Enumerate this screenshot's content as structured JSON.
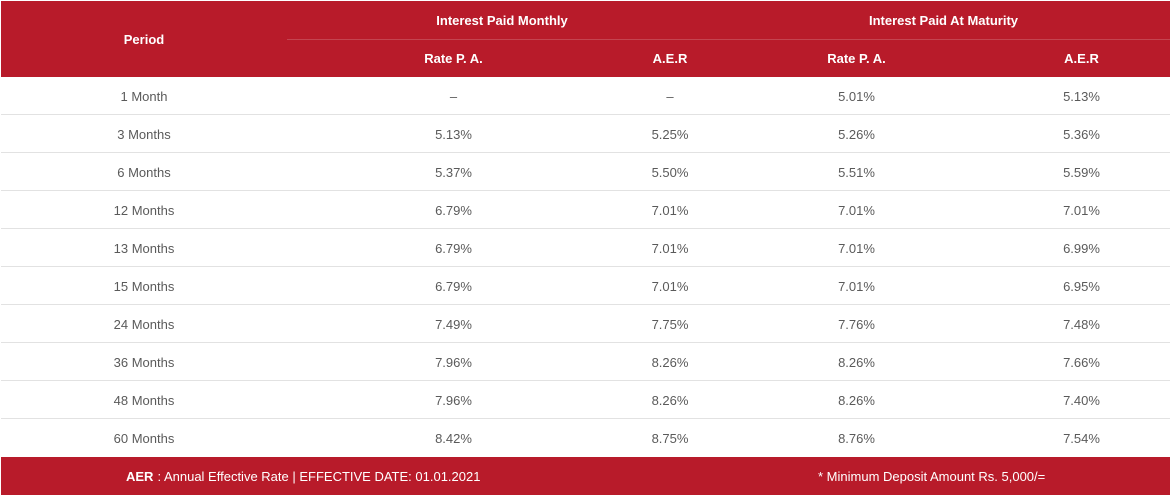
{
  "header": {
    "period": "Period",
    "monthly_group": "Interest Paid Monthly",
    "maturity_group": "Interest Paid At Maturity",
    "monthly_rate": "Rate P. A.",
    "monthly_aer": "A.E.R",
    "maturity_rate": "Rate P. A.",
    "maturity_aer": "A.E.R"
  },
  "rows": [
    {
      "period": "1 Month",
      "monthly_rate": "–",
      "monthly_aer": "–",
      "maturity_rate": "5.01%",
      "maturity_aer": "5.13%"
    },
    {
      "period": "3 Months",
      "monthly_rate": "5.13%",
      "monthly_aer": "5.25%",
      "maturity_rate": "5.26%",
      "maturity_aer": "5.36%"
    },
    {
      "period": "6 Months",
      "monthly_rate": "5.37%",
      "monthly_aer": "5.50%",
      "maturity_rate": "5.51%",
      "maturity_aer": "5.59%"
    },
    {
      "period": "12 Months",
      "monthly_rate": "6.79%",
      "monthly_aer": "7.01%",
      "maturity_rate": "7.01%",
      "maturity_aer": "7.01%"
    },
    {
      "period": "13 Months",
      "monthly_rate": "6.79%",
      "monthly_aer": "7.01%",
      "maturity_rate": "7.01%",
      "maturity_aer": "6.99%"
    },
    {
      "period": "15 Months",
      "monthly_rate": "6.79%",
      "monthly_aer": "7.01%",
      "maturity_rate": "7.01%",
      "maturity_aer": "6.95%"
    },
    {
      "period": "24 Months",
      "monthly_rate": "7.49%",
      "monthly_aer": "7.75%",
      "maturity_rate": "7.76%",
      "maturity_aer": "7.48%"
    },
    {
      "period": "36 Months",
      "monthly_rate": "7.96%",
      "monthly_aer": "8.26%",
      "maturity_rate": "8.26%",
      "maturity_aer": "7.66%"
    },
    {
      "period": "48 Months",
      "monthly_rate": "7.96%",
      "monthly_aer": "8.26%",
      "maturity_rate": "8.26%",
      "maturity_aer": "7.40%"
    },
    {
      "period": "60 Months",
      "monthly_rate": "8.42%",
      "monthly_aer": "8.75%",
      "maturity_rate": "8.76%",
      "maturity_aer": "7.54%"
    }
  ],
  "footer": {
    "aer_abbr": "AER",
    "aer_text": ": Annual Effective Rate | EFFECTIVE DATE: 01.01.2021",
    "min_deposit": "* Minimum Deposit Amount Rs. 5,000/="
  },
  "colors": {
    "brand_red": "#b81b2a",
    "row_divider": "#e2e2e2"
  }
}
